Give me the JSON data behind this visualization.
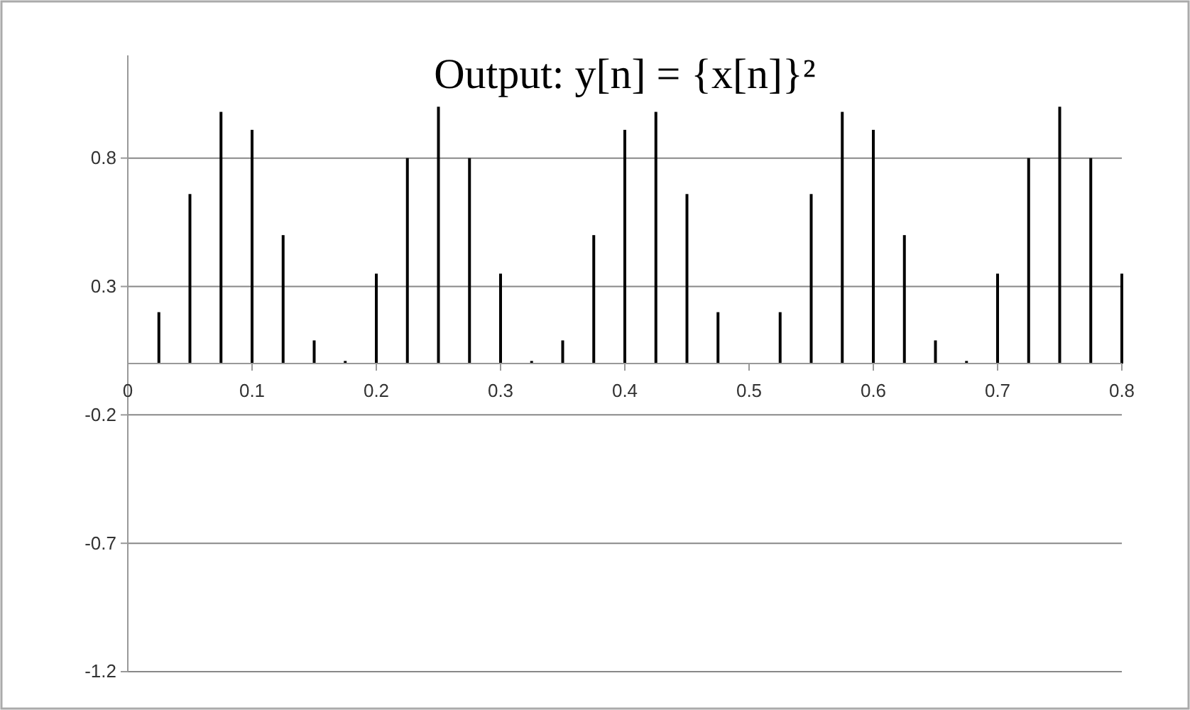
{
  "chart_data": {
    "type": "bar",
    "title": "Output: y[n] = {x[n]}²",
    "x": [
      0.025,
      0.05,
      0.075,
      0.1,
      0.125,
      0.15,
      0.175,
      0.2,
      0.225,
      0.25,
      0.275,
      0.3,
      0.325,
      0.35,
      0.375,
      0.4,
      0.425,
      0.45,
      0.475,
      0.5,
      0.525,
      0.55,
      0.575,
      0.6,
      0.625,
      0.65,
      0.675,
      0.7,
      0.725,
      0.75,
      0.775,
      0.8
    ],
    "values": [
      0.2,
      0.66,
      0.98,
      0.91,
      0.5,
      0.09,
      0.01,
      0.35,
      0.8,
      1.0,
      0.8,
      0.35,
      0.01,
      0.09,
      0.5,
      0.91,
      0.98,
      0.66,
      0.2,
      0,
      0.2,
      0.66,
      0.98,
      0.91,
      0.5,
      0.09,
      0.01,
      0.35,
      0.8,
      1.0,
      0.8,
      0.35
    ],
    "color": "#000000",
    "xlim": [
      0,
      0.8
    ],
    "xticks": [
      0,
      0.1,
      0.2,
      0.3,
      0.4,
      0.5,
      0.6,
      0.7,
      0.8
    ],
    "ylim": [
      -1.2,
      1.2
    ],
    "yticks": [
      -1.2,
      -0.7,
      -0.2,
      0.3,
      0.8
    ],
    "grid": "y"
  }
}
